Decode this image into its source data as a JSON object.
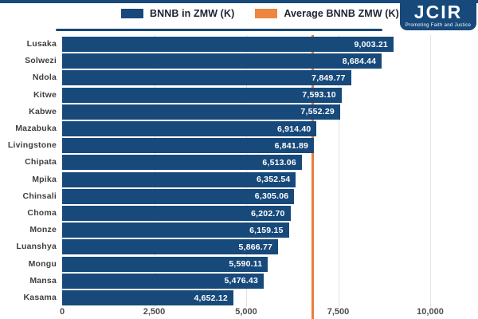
{
  "logo": {
    "name": "JCIR",
    "tagline": "Promoting Faith and Justice"
  },
  "legend": {
    "items": [
      {
        "label": "BNNB in ZMW (K)",
        "color": "#17497B"
      },
      {
        "label": "Average BNNB ZMW (K)",
        "color": "#EC8640"
      }
    ]
  },
  "colors": {
    "bar": "#17497B",
    "average_line": "#E97E3C",
    "navy": "#17497B",
    "gridline": "#E3E3E3",
    "value_text": "#FFFFFF",
    "category_text": "#3F3F3F"
  },
  "chart_data": {
    "type": "bar",
    "orientation": "horizontal",
    "title": "",
    "xlabel": "",
    "ylabel": "",
    "categories": [
      "Lusaka",
      "Solwezi",
      "Ndola",
      "Kitwe",
      "Kabwe",
      "Mazabuka",
      "Livingstone",
      "Chipata",
      "Mpika",
      "Chinsali",
      "Choma",
      "Monze",
      "Luanshya",
      "Mongu",
      "Mansa",
      "Kasama"
    ],
    "values": [
      9003.21,
      8684.44,
      7849.77,
      7593.1,
      7552.29,
      6914.4,
      6841.89,
      6513.06,
      6352.54,
      6305.06,
      6202.7,
      6159.15,
      5866.77,
      5590.11,
      5476.43,
      4652.12
    ],
    "value_labels": [
      "9,003.21",
      "8,684.44",
      "7,849.77",
      "7,593.10",
      "7,552.29",
      "6,914.40",
      "6,841.89",
      "6,513.06",
      "6,352.54",
      "6,305.06",
      "6,202.70",
      "6,159.15",
      "5,866.77",
      "5,590.11",
      "5,476.43",
      "4,652.12"
    ],
    "x_ticks": [
      0,
      2500,
      5000,
      7500,
      10000
    ],
    "x_tick_labels": [
      "0",
      "2,500",
      "5,000",
      "7,500",
      "10,000"
    ],
    "xlim": [
      0,
      10000
    ],
    "grid": "vertical",
    "legend_position": "top",
    "average_line": {
      "label": "Average BNNB ZMW (K)",
      "approx_value": 6800,
      "value_shown": false
    }
  }
}
